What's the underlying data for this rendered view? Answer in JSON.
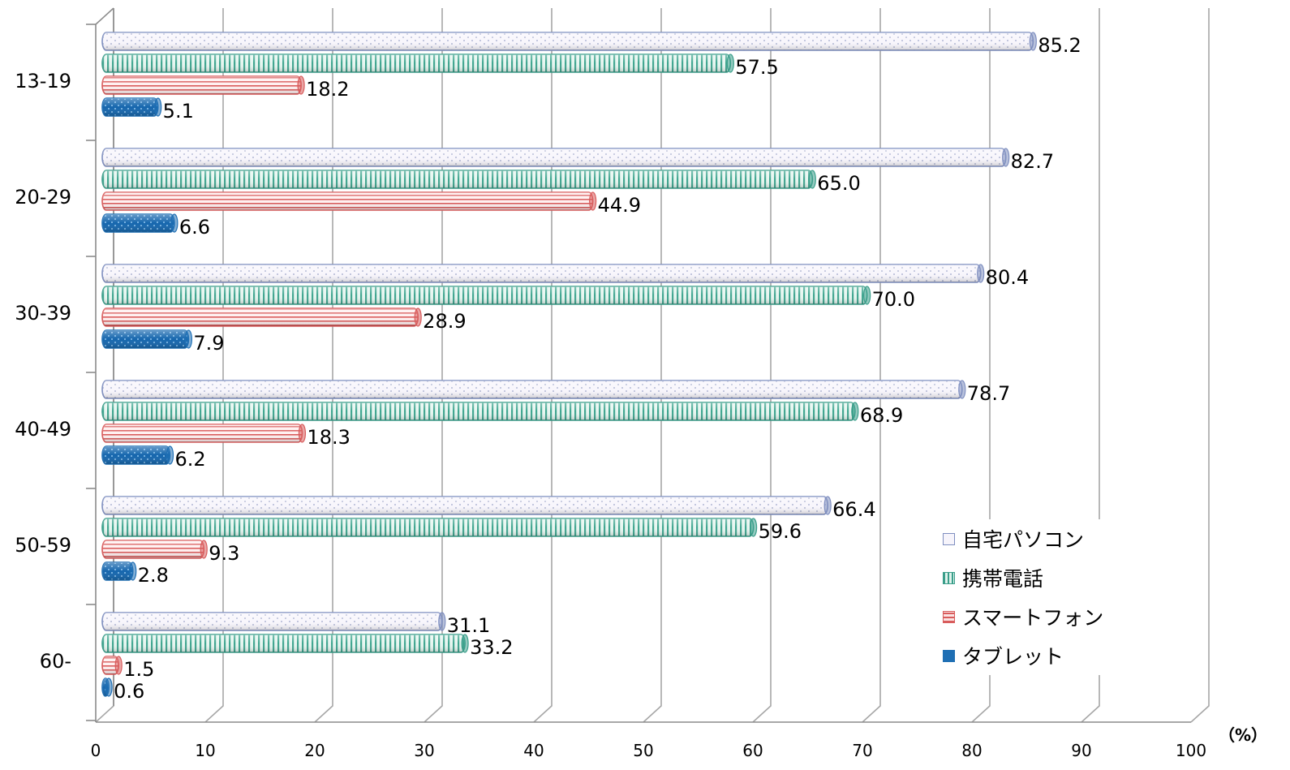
{
  "chart_data": {
    "type": "bar",
    "orientation": "horizontal",
    "categories": [
      "13-19",
      "20-29",
      "30-39",
      "40-49",
      "50-59",
      "60-"
    ],
    "series": [
      {
        "name": "自宅パソコン",
        "values": [
          85.2,
          82.7,
          80.4,
          78.7,
          66.4,
          31.1
        ],
        "color": "#7f8fc0",
        "fill": "#f6f4fb",
        "pattern": "dots"
      },
      {
        "name": "携帯電話",
        "values": [
          57.5,
          65.0,
          70.0,
          68.9,
          59.6,
          33.2
        ],
        "color": "#3a9e8a",
        "fill": "#dff3ec",
        "pattern": "vertical-stripes"
      },
      {
        "name": "スマートフォン",
        "values": [
          18.2,
          44.9,
          28.9,
          18.3,
          9.3,
          1.5
        ],
        "color": "#d85c5c",
        "fill": "#fbe3e3",
        "pattern": "horizontal-stripes"
      },
      {
        "name": "タブレット",
        "values": [
          5.1,
          6.6,
          7.9,
          6.2,
          2.8,
          0.6
        ],
        "color": "#1f6fb4",
        "fill": "#1f6fb4",
        "pattern": "dots-dense"
      }
    ],
    "value_labels": [
      [
        "85.2",
        "57.5",
        "18.2",
        "5.1"
      ],
      [
        "82.7",
        "65.0",
        "44.9",
        "6.6"
      ],
      [
        "80.4",
        "70.0",
        "28.9",
        "7.9"
      ],
      [
        "78.7",
        "68.9",
        "18.3",
        "6.2"
      ],
      [
        "66.4",
        "59.6",
        "9.3",
        "2.8"
      ],
      [
        "31.1",
        "33.2",
        "1.5",
        "0.6"
      ]
    ],
    "x_ticks": [
      "0",
      "10",
      "20",
      "30",
      "40",
      "50",
      "60",
      "70",
      "80",
      "90",
      "100"
    ],
    "xlim": [
      0,
      100
    ],
    "unit": "（%）",
    "legend_position": "bottom-right",
    "grid": true
  }
}
